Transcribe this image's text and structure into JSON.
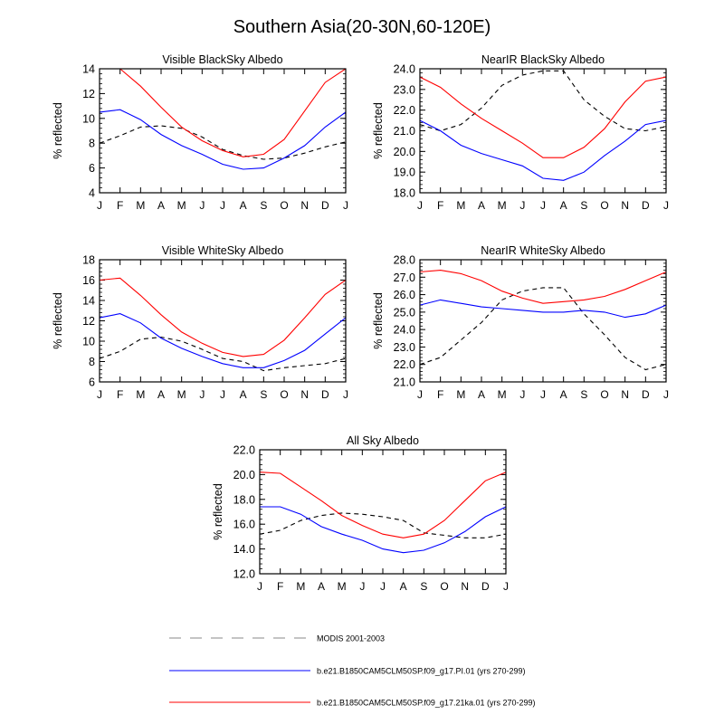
{
  "figure": {
    "title": "Southern Asia(20-30N,60-120E)"
  },
  "legend": {
    "entries": [
      {
        "label": "MODIS 2001-2003",
        "color": "#000000",
        "dash": true
      },
      {
        "label": "b.e21.B1850CAM5CLM50SP.f09_g17.PI.01 (yrs 270-299)",
        "color": "#0000ff",
        "dash": false
      },
      {
        "label": "b.e21.B1850CAM5CLM50SP.f09_g17.21ka.01 (yrs 270-299)",
        "color": "#ff0000",
        "dash": false
      }
    ]
  },
  "chart_data": [
    {
      "type": "line",
      "title": "Visible BlackSky Albedo",
      "ylabel": "% reflected",
      "categories": [
        "J",
        "F",
        "M",
        "A",
        "M",
        "J",
        "J",
        "A",
        "S",
        "O",
        "N",
        "D",
        "J"
      ],
      "ylim": [
        4,
        14
      ],
      "yticks": [
        "4",
        "6",
        "8",
        "10",
        "12",
        "14"
      ],
      "series": [
        {
          "color": "#000000",
          "dash": true,
          "values": [
            8.0,
            8.6,
            9.3,
            9.4,
            9.2,
            8.5,
            7.5,
            7.0,
            6.7,
            6.8,
            7.2,
            7.7,
            8.1
          ]
        },
        {
          "color": "#0000ff",
          "dash": false,
          "values": [
            10.5,
            10.7,
            9.9,
            8.7,
            7.8,
            7.1,
            6.3,
            5.9,
            6.0,
            6.8,
            7.8,
            9.3,
            10.5
          ]
        },
        {
          "color": "#ff0000",
          "dash": false,
          "values": [
            14.0,
            14.0,
            12.6,
            10.9,
            9.3,
            8.2,
            7.4,
            6.9,
            7.1,
            8.3,
            10.6,
            12.9,
            14.0
          ]
        }
      ]
    },
    {
      "type": "line",
      "title": "NearIR BlackSky Albedo",
      "ylabel": "% reflected",
      "categories": [
        "J",
        "F",
        "M",
        "A",
        "M",
        "J",
        "J",
        "A",
        "S",
        "O",
        "N",
        "D",
        "J"
      ],
      "ylim": [
        18,
        24
      ],
      "yticks": [
        "18.0",
        "19.0",
        "20.0",
        "21.0",
        "22.0",
        "23.0",
        "24.0"
      ],
      "series": [
        {
          "color": "#000000",
          "dash": true,
          "values": [
            21.3,
            21.0,
            21.3,
            22.1,
            23.2,
            23.7,
            23.9,
            23.9,
            22.5,
            21.7,
            21.1,
            21.0,
            21.2
          ]
        },
        {
          "color": "#0000ff",
          "dash": false,
          "values": [
            21.5,
            21.0,
            20.3,
            19.9,
            19.6,
            19.3,
            18.7,
            18.6,
            19.0,
            19.8,
            20.5,
            21.3,
            21.5
          ]
        },
        {
          "color": "#ff0000",
          "dash": false,
          "values": [
            23.6,
            23.1,
            22.3,
            21.6,
            21.0,
            20.4,
            19.7,
            19.7,
            20.2,
            21.1,
            22.4,
            23.4,
            23.6
          ]
        }
      ]
    },
    {
      "type": "line",
      "title": "Visible WhiteSky Albedo",
      "ylabel": "% reflected",
      "categories": [
        "J",
        "F",
        "M",
        "A",
        "M",
        "J",
        "J",
        "A",
        "S",
        "O",
        "N",
        "D",
        "J"
      ],
      "ylim": [
        6,
        18
      ],
      "yticks": [
        "6",
        "8",
        "10",
        "12",
        "14",
        "16",
        "18"
      ],
      "series": [
        {
          "color": "#000000",
          "dash": true,
          "values": [
            8.3,
            9.0,
            10.2,
            10.4,
            10.0,
            9.2,
            8.3,
            8.0,
            7.1,
            7.4,
            7.6,
            7.8,
            8.3
          ]
        },
        {
          "color": "#0000ff",
          "dash": false,
          "values": [
            12.3,
            12.7,
            11.8,
            10.3,
            9.3,
            8.5,
            7.8,
            7.4,
            7.4,
            8.1,
            9.1,
            10.7,
            12.3
          ]
        },
        {
          "color": "#ff0000",
          "dash": false,
          "values": [
            16.0,
            16.2,
            14.5,
            12.6,
            10.9,
            9.8,
            8.9,
            8.5,
            8.7,
            10.1,
            12.3,
            14.6,
            16.0
          ]
        }
      ]
    },
    {
      "type": "line",
      "title": "NearIR WhiteSky Albedo",
      "ylabel": "% reflected",
      "categories": [
        "J",
        "F",
        "M",
        "A",
        "M",
        "J",
        "J",
        "A",
        "S",
        "O",
        "N",
        "D",
        "J"
      ],
      "ylim": [
        21,
        28
      ],
      "yticks": [
        "21.0",
        "22.0",
        "23.0",
        "24.0",
        "25.0",
        "26.0",
        "27.0",
        "28.0"
      ],
      "series": [
        {
          "color": "#000000",
          "dash": true,
          "values": [
            22.0,
            22.4,
            23.4,
            24.4,
            25.7,
            26.2,
            26.4,
            26.4,
            24.9,
            23.7,
            22.4,
            21.7,
            22.0
          ]
        },
        {
          "color": "#0000ff",
          "dash": false,
          "values": [
            25.4,
            25.7,
            25.5,
            25.3,
            25.2,
            25.1,
            25.0,
            25.0,
            25.1,
            25.0,
            24.7,
            24.9,
            25.4
          ]
        },
        {
          "color": "#ff0000",
          "dash": false,
          "values": [
            27.3,
            27.4,
            27.2,
            26.8,
            26.2,
            25.8,
            25.5,
            25.6,
            25.7,
            25.9,
            26.3,
            26.8,
            27.3
          ]
        }
      ]
    },
    {
      "type": "line",
      "title": "All Sky Albedo",
      "ylabel": "% reflected",
      "categories": [
        "J",
        "F",
        "M",
        "A",
        "M",
        "J",
        "J",
        "A",
        "S",
        "O",
        "N",
        "D",
        "J"
      ],
      "ylim": [
        12,
        22
      ],
      "yticks": [
        "12.0",
        "14.0",
        "16.0",
        "18.0",
        "20.0",
        "22.0"
      ],
      "series": [
        {
          "color": "#000000",
          "dash": true,
          "values": [
            15.2,
            15.5,
            16.3,
            16.7,
            16.9,
            16.8,
            16.6,
            16.3,
            15.3,
            15.1,
            14.9,
            14.9,
            15.2
          ]
        },
        {
          "color": "#0000ff",
          "dash": false,
          "values": [
            17.4,
            17.4,
            16.8,
            15.8,
            15.2,
            14.7,
            14.0,
            13.7,
            13.9,
            14.5,
            15.4,
            16.6,
            17.4
          ]
        },
        {
          "color": "#ff0000",
          "dash": false,
          "values": [
            20.2,
            20.1,
            19.0,
            17.9,
            16.7,
            15.9,
            15.2,
            14.9,
            15.2,
            16.3,
            17.9,
            19.5,
            20.2
          ]
        }
      ]
    }
  ]
}
